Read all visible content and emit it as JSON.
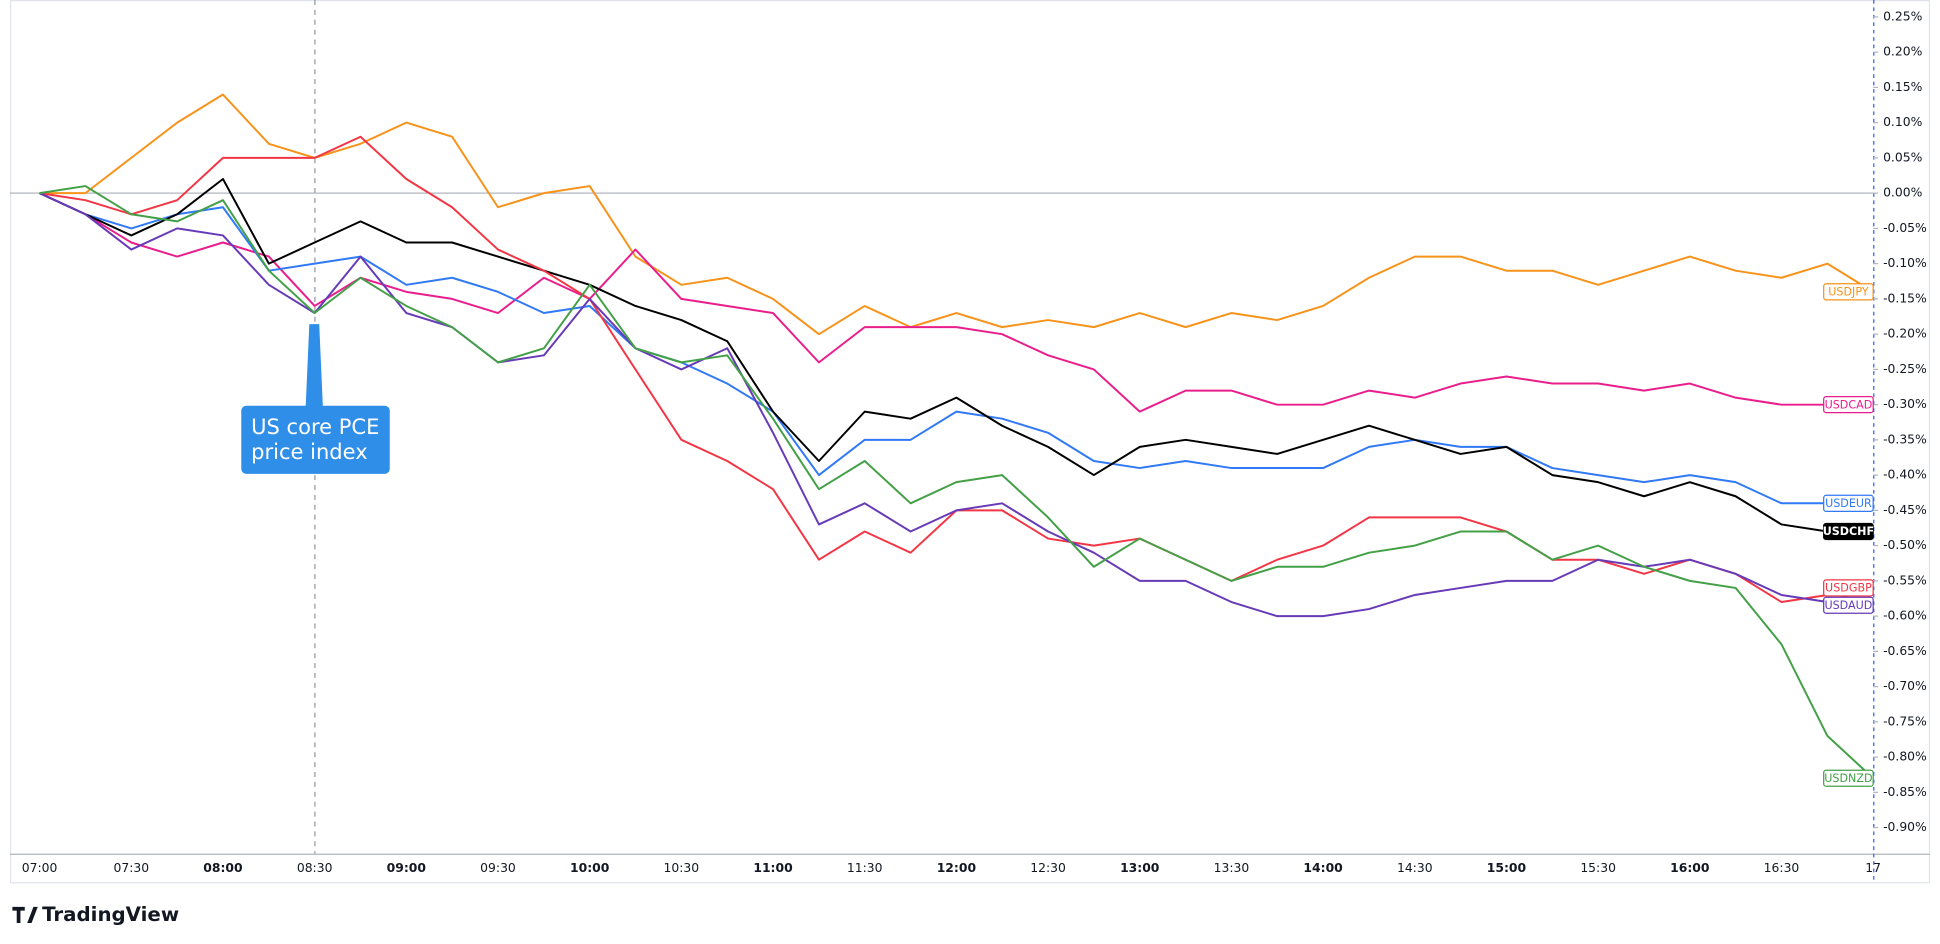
{
  "chart_data": {
    "type": "line",
    "source": "TradingView",
    "annotation": [
      "US core PCE",
      "price index"
    ],
    "x": [
      "07:00",
      null,
      "07:30",
      null,
      "08:00",
      null,
      "08:30",
      null,
      "09:00",
      null,
      "09:30",
      null,
      "10:00",
      null,
      "10:30",
      null,
      "11:00",
      null,
      "11:30",
      null,
      "12:00",
      null,
      "12:30",
      null,
      "13:00",
      null,
      "13:30",
      null,
      "14:00",
      null,
      "14:30",
      null,
      "15:00",
      null,
      "15:30",
      null,
      "16:00",
      null,
      "16:30",
      null,
      "17"
    ],
    "ylim": [
      -0.937,
      0.274
    ],
    "yticks": [
      {
        "value": 0.25,
        "label": "0.25%"
      },
      {
        "value": 0.2,
        "label": "0.20%"
      },
      {
        "value": 0.15,
        "label": "0.15%"
      },
      {
        "value": 0.1,
        "label": "0.10%"
      },
      {
        "value": 0.05,
        "label": "0.05%"
      },
      {
        "value": 0,
        "label": "0.00%"
      },
      {
        "value": -0.05,
        "label": "-0.05%"
      },
      {
        "value": -0.1,
        "label": "-0.10%"
      },
      {
        "value": -0.15,
        "label": "-0.15%"
      },
      {
        "value": -0.2,
        "label": "-0.20%"
      },
      {
        "value": -0.25,
        "label": "-0.25%"
      },
      {
        "value": -0.3,
        "label": "-0.30%"
      },
      {
        "value": -0.35,
        "label": "-0.35%"
      },
      {
        "value": -0.4,
        "label": "-0.40%"
      },
      {
        "value": -0.45,
        "label": "-0.45%"
      },
      {
        "value": -0.5,
        "label": "-0.50%"
      },
      {
        "value": -0.55,
        "label": "-0.55%"
      },
      {
        "value": -0.6,
        "label": "-0.60%"
      },
      {
        "value": -0.65,
        "label": "-0.65%"
      },
      {
        "value": -0.7,
        "label": "-0.70%"
      },
      {
        "value": -0.75,
        "label": "-0.75%"
      },
      {
        "value": -0.8,
        "label": "-0.80%"
      },
      {
        "value": -0.85,
        "label": "-0.85%"
      },
      {
        "value": -0.9,
        "label": "-0.90%"
      }
    ],
    "series": [
      {
        "name": "USDJPY",
        "color": "#f7931a",
        "values": [
          0,
          0,
          0.05,
          0.1,
          0.14,
          0.07,
          0.05,
          0.07,
          0.1,
          0.08,
          -0.02,
          0,
          0.01,
          -0.09,
          -0.13,
          -0.12,
          -0.15,
          -0.2,
          -0.16,
          -0.19,
          -0.17,
          -0.19,
          -0.18,
          -0.19,
          -0.17,
          -0.19,
          -0.17,
          -0.18,
          -0.16,
          -0.12,
          -0.09,
          -0.09,
          -0.11,
          -0.11,
          -0.13,
          -0.11,
          -0.09,
          -0.11,
          -0.12,
          -0.1,
          -0.14
        ]
      },
      {
        "name": "USDCAD",
        "color": "#e91e8c",
        "values": [
          0,
          -0.03,
          -0.07,
          -0.09,
          -0.07,
          -0.09,
          -0.16,
          -0.12,
          -0.14,
          -0.15,
          -0.17,
          -0.12,
          -0.15,
          -0.08,
          -0.15,
          -0.16,
          -0.17,
          -0.24,
          -0.19,
          -0.19,
          -0.19,
          -0.2,
          -0.23,
          -0.25,
          -0.31,
          -0.28,
          -0.28,
          -0.3,
          -0.3,
          -0.28,
          -0.29,
          -0.27,
          -0.26,
          -0.27,
          -0.27,
          -0.28,
          -0.27,
          -0.29,
          -0.3,
          -0.3,
          -0.3
        ]
      },
      {
        "name": "USDEUR",
        "color": "#3179f5",
        "values": [
          0,
          -0.03,
          -0.05,
          -0.03,
          -0.02,
          -0.11,
          -0.1,
          -0.09,
          -0.13,
          -0.12,
          -0.14,
          -0.17,
          -0.16,
          -0.22,
          -0.24,
          -0.27,
          -0.31,
          -0.4,
          -0.35,
          -0.35,
          -0.31,
          -0.32,
          -0.34,
          -0.38,
          -0.39,
          -0.38,
          -0.39,
          -0.39,
          -0.39,
          -0.36,
          -0.35,
          -0.36,
          -0.36,
          -0.39,
          -0.4,
          -0.41,
          -0.4,
          -0.41,
          -0.44,
          -0.44,
          -0.44
        ]
      },
      {
        "name": "USDCHF",
        "color": "#000000",
        "values": [
          0,
          -0.03,
          -0.06,
          -0.03,
          0.02,
          -0.1,
          -0.07,
          -0.04,
          -0.07,
          -0.07,
          -0.09,
          -0.11,
          -0.13,
          -0.16,
          -0.18,
          -0.21,
          -0.31,
          -0.38,
          -0.31,
          -0.32,
          -0.29,
          -0.33,
          -0.36,
          -0.4,
          -0.36,
          -0.35,
          -0.36,
          -0.37,
          -0.35,
          -0.33,
          -0.35,
          -0.37,
          -0.36,
          -0.4,
          -0.41,
          -0.43,
          -0.41,
          -0.43,
          -0.47,
          -0.48,
          -0.48
        ]
      },
      {
        "name": "USDGBP",
        "color": "#f23645",
        "values": [
          0,
          -0.01,
          -0.03,
          -0.01,
          0.05,
          0.05,
          0.05,
          0.08,
          0.02,
          -0.02,
          -0.08,
          -0.11,
          -0.15,
          -0.25,
          -0.35,
          -0.38,
          -0.42,
          -0.52,
          -0.48,
          -0.51,
          -0.45,
          -0.45,
          -0.49,
          -0.5,
          -0.49,
          -0.52,
          -0.55,
          -0.52,
          -0.5,
          -0.46,
          -0.46,
          -0.46,
          -0.48,
          -0.52,
          -0.52,
          -0.54,
          -0.52,
          -0.54,
          -0.58,
          -0.57,
          -0.56
        ]
      },
      {
        "name": "USDAUD",
        "color": "#673ab7",
        "values": [
          0,
          -0.03,
          -0.08,
          -0.05,
          -0.06,
          -0.13,
          -0.17,
          -0.09,
          -0.17,
          -0.19,
          -0.24,
          -0.23,
          -0.15,
          -0.22,
          -0.25,
          -0.22,
          -0.34,
          -0.47,
          -0.44,
          -0.48,
          -0.45,
          -0.44,
          -0.48,
          -0.51,
          -0.55,
          -0.55,
          -0.58,
          -0.6,
          -0.6,
          -0.59,
          -0.57,
          -0.56,
          -0.55,
          -0.55,
          -0.52,
          -0.53,
          -0.52,
          -0.54,
          -0.57,
          -0.58,
          -0.56
        ]
      },
      {
        "name": "USDNZD",
        "color": "#43a047",
        "values": [
          0,
          0.01,
          -0.03,
          -0.04,
          -0.01,
          -0.11,
          -0.17,
          -0.12,
          -0.16,
          -0.19,
          -0.24,
          -0.22,
          -0.13,
          -0.22,
          -0.24,
          -0.23,
          -0.32,
          -0.42,
          -0.38,
          -0.44,
          -0.41,
          -0.4,
          -0.46,
          -0.53,
          -0.49,
          -0.52,
          -0.55,
          -0.53,
          -0.53,
          -0.51,
          -0.5,
          -0.48,
          -0.48,
          -0.52,
          -0.5,
          -0.53,
          -0.55,
          -0.56,
          -0.64,
          -0.77,
          -0.83
        ]
      }
    ]
  }
}
